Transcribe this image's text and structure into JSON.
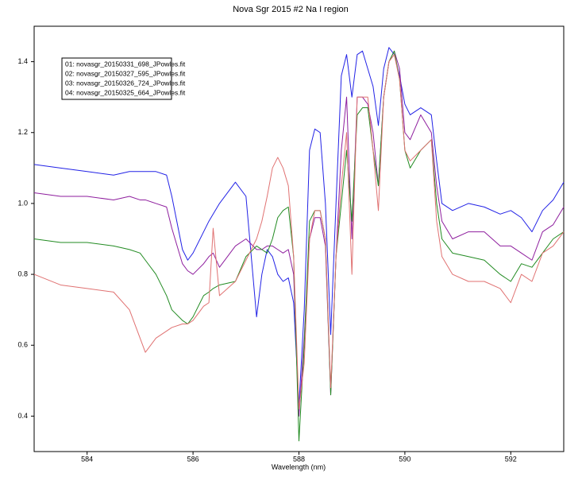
{
  "chart_data": {
    "type": "line",
    "title": "Nova Sgr 2015 #2 Na I region",
    "x_label": "Wavelength (nm)",
    "x": [
      583,
      583.5,
      584,
      584.5,
      584.8,
      585.0,
      585.1,
      585.3,
      585.5,
      585.6,
      585.8,
      585.9,
      586.0,
      586.2,
      586.3,
      586.38,
      586.5,
      586.8,
      587.0,
      587.2,
      587.3,
      587.4,
      587.5,
      587.6,
      587.7,
      587.8,
      587.9,
      588.0,
      588.1,
      588.2,
      588.3,
      588.4,
      588.5,
      588.6,
      588.7,
      588.8,
      588.9,
      589.0,
      589.1,
      589.2,
      589.3,
      589.4,
      589.5,
      589.6,
      589.7,
      589.8,
      589.9,
      590.0,
      590.1,
      590.3,
      590.5,
      590.6,
      590.7,
      590.9,
      591.2,
      591.5,
      591.8,
      592.0,
      592.2,
      592.4,
      592.6,
      592.8,
      593.0
    ],
    "series": [
      {
        "name": "01: novasgr_20150331_698_JPowles.fit",
        "color": "#2222e6",
        "values": [
          1.11,
          1.1,
          1.09,
          1.08,
          1.09,
          1.09,
          1.09,
          1.09,
          1.08,
          1.02,
          0.87,
          0.84,
          0.86,
          0.92,
          0.95,
          0.97,
          1.0,
          1.06,
          1.02,
          0.68,
          0.8,
          0.87,
          0.85,
          0.8,
          0.78,
          0.79,
          0.72,
          0.43,
          0.7,
          1.15,
          1.21,
          1.2,
          1.0,
          0.63,
          1.0,
          1.36,
          1.42,
          1.3,
          1.42,
          1.43,
          1.38,
          1.33,
          1.22,
          1.38,
          1.44,
          1.42,
          1.36,
          1.28,
          1.25,
          1.27,
          1.25,
          1.12,
          1.0,
          0.98,
          1.0,
          0.99,
          0.97,
          0.98,
          0.96,
          0.92,
          0.98,
          1.01,
          1.06
        ]
      },
      {
        "name": "02: novasgr_20150327_595_JPowles.fit",
        "color": "#8e1e9e",
        "values": [
          1.03,
          1.02,
          1.02,
          1.01,
          1.02,
          1.01,
          1.01,
          1.0,
          0.99,
          0.93,
          0.83,
          0.81,
          0.8,
          0.83,
          0.85,
          0.86,
          0.82,
          0.88,
          0.9,
          0.87,
          0.87,
          0.88,
          0.88,
          0.87,
          0.86,
          0.87,
          0.8,
          0.4,
          0.62,
          0.9,
          0.96,
          0.96,
          0.88,
          0.46,
          0.85,
          1.15,
          1.3,
          0.9,
          1.3,
          1.3,
          1.28,
          1.2,
          1.05,
          1.3,
          1.4,
          1.43,
          1.38,
          1.2,
          1.18,
          1.25,
          1.2,
          1.05,
          0.95,
          0.9,
          0.92,
          0.92,
          0.88,
          0.88,
          0.86,
          0.84,
          0.92,
          0.94,
          0.99
        ]
      },
      {
        "name": "03: novasgr_20150326_724_JPowles.fit",
        "color": "#228b22",
        "values": [
          0.9,
          0.89,
          0.89,
          0.88,
          0.87,
          0.86,
          0.84,
          0.8,
          0.74,
          0.7,
          0.67,
          0.66,
          0.68,
          0.74,
          0.75,
          0.76,
          0.77,
          0.78,
          0.85,
          0.88,
          0.87,
          0.86,
          0.9,
          0.96,
          0.98,
          0.99,
          0.85,
          0.33,
          0.6,
          0.95,
          0.98,
          0.98,
          0.9,
          0.46,
          0.85,
          1.0,
          1.15,
          0.95,
          1.25,
          1.27,
          1.27,
          1.15,
          1.05,
          1.3,
          1.4,
          1.43,
          1.35,
          1.15,
          1.1,
          1.15,
          1.18,
          1.0,
          0.9,
          0.86,
          0.85,
          0.84,
          0.8,
          0.78,
          0.83,
          0.82,
          0.86,
          0.9,
          0.92
        ]
      },
      {
        "name": "04: novasgr_20150325_664_JPowles.fit",
        "color": "#e07272",
        "values": [
          0.8,
          0.77,
          0.76,
          0.75,
          0.7,
          0.62,
          0.58,
          0.62,
          0.64,
          0.65,
          0.66,
          0.66,
          0.67,
          0.71,
          0.72,
          0.93,
          0.74,
          0.78,
          0.84,
          0.9,
          0.95,
          1.02,
          1.1,
          1.13,
          1.1,
          1.05,
          0.85,
          0.42,
          0.55,
          0.9,
          0.98,
          0.98,
          0.9,
          0.48,
          0.85,
          1.05,
          1.2,
          0.8,
          1.3,
          1.3,
          1.3,
          1.15,
          0.98,
          1.3,
          1.4,
          1.42,
          1.35,
          1.15,
          1.12,
          1.15,
          1.18,
          0.95,
          0.85,
          0.8,
          0.78,
          0.78,
          0.76,
          0.72,
          0.8,
          0.78,
          0.86,
          0.88,
          0.92
        ]
      }
    ],
    "xlim": [
      583,
      593
    ],
    "xticks": [
      584,
      586,
      588,
      590,
      592
    ],
    "ylim": [
      0.3,
      1.5
    ],
    "yticks": [
      0.4,
      0.6,
      0.8,
      {
        "value": 1,
        "label": "1.0"
      },
      1.2,
      1.4
    ],
    "grid": false,
    "legend": "upper left"
  }
}
